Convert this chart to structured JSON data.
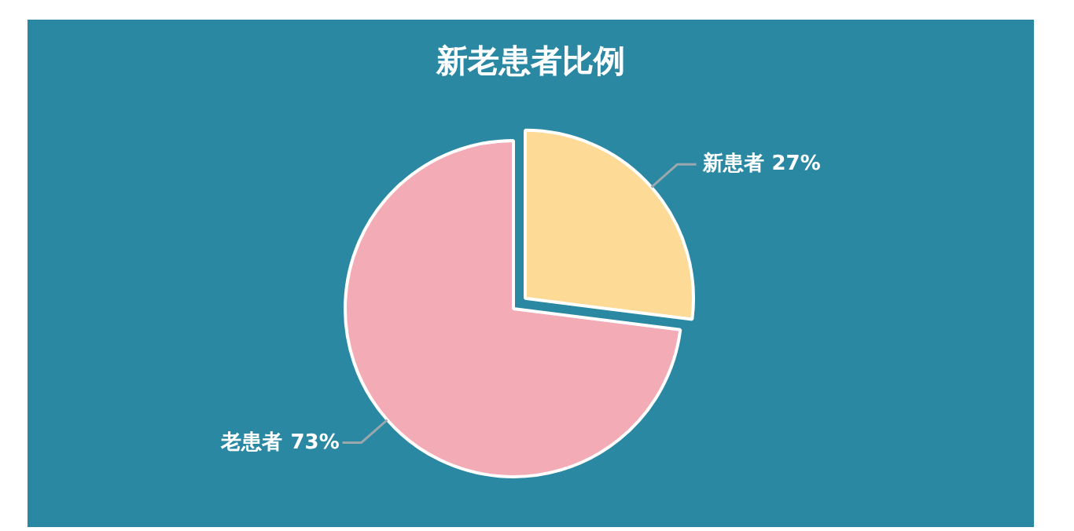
{
  "chart_data": {
    "type": "pie",
    "title": "新老患者比例",
    "categories": [
      "新患者",
      "老患者"
    ],
    "values": [
      27,
      73
    ],
    "value_labels": [
      "27%",
      "73%"
    ],
    "colors": [
      "#fddb96",
      "#f3abb6"
    ]
  }
}
